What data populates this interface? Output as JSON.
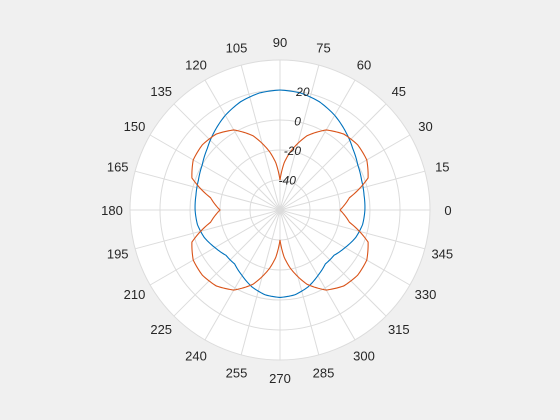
{
  "chart_data": {
    "type": "polar-line",
    "title": "",
    "theta_unit": "degrees",
    "theta_ticks": [
      0,
      15,
      30,
      45,
      60,
      75,
      90,
      105,
      120,
      135,
      150,
      165,
      180,
      195,
      210,
      225,
      240,
      255,
      270,
      285,
      300,
      315,
      330,
      345
    ],
    "theta_tick_labels": [
      "0",
      "15",
      "30",
      "45",
      "60",
      "75",
      "90",
      "105",
      "120",
      "135",
      "150",
      "165",
      "180",
      "195",
      "210",
      "225",
      "240",
      "255",
      "270",
      "285",
      "300",
      "315",
      "330",
      "345"
    ],
    "r_ticks": [
      -40,
      -20,
      0,
      20
    ],
    "r_tick_labels": [
      "-40",
      "-20",
      "0",
      "20"
    ],
    "r_range": [
      -60,
      40
    ],
    "r_label_angle_deg": 80,
    "grid": true,
    "background_color": "#ffffff",
    "grid_color": "#dcdcdc",
    "series": [
      {
        "color": "#0072bd",
        "theta": [
          0,
          10,
          20,
          30,
          40,
          50,
          60,
          70,
          80,
          90,
          100,
          110,
          120,
          130,
          140,
          150,
          160,
          170,
          180,
          190,
          200,
          210,
          220,
          230,
          240,
          250,
          260,
          270,
          280,
          290,
          300,
          310,
          320,
          330,
          340,
          350,
          360
        ],
        "r": [
          -3.4,
          -3.1,
          -2.1,
          -0.1,
          3.4,
          8.1,
          12.9,
          16.8,
          19.2,
          20.0,
          19.2,
          16.8,
          12.9,
          8.1,
          3.4,
          -0.1,
          -2.1,
          -3.1,
          -3.4,
          -4.1,
          -6.3,
          -9.9,
          -13.0,
          -13.0,
          -9.5,
          -5.4,
          -2.6,
          -1.7,
          -2.6,
          -5.4,
          -9.5,
          -13.0,
          -13.0,
          -9.9,
          -6.3,
          -4.1,
          -3.4
        ]
      },
      {
        "color": "#d95319",
        "theta": [
          0,
          10,
          20,
          30,
          40,
          50,
          60,
          70,
          80,
          85,
          90,
          95,
          100,
          110,
          120,
          130,
          140,
          150,
          160,
          170,
          180,
          190,
          200,
          210,
          220,
          230,
          240,
          250,
          260,
          265,
          270,
          275,
          280,
          290,
          300,
          310,
          320,
          330,
          340,
          350,
          360
        ],
        "r": [
          -20.0,
          -13.0,
          2.5,
          6.8,
          7.6,
          6.1,
          1.6,
          -7.3,
          -20.7,
          -28.5,
          -40.0,
          -28.5,
          -20.7,
          -7.3,
          1.6,
          6.1,
          7.6,
          6.8,
          2.5,
          -13.0,
          -20.0,
          -13.0,
          2.5,
          6.8,
          7.6,
          6.1,
          1.6,
          -7.3,
          -20.7,
          -28.5,
          -40.0,
          -28.5,
          -20.7,
          -7.3,
          1.6,
          6.1,
          7.6,
          6.8,
          2.5,
          -13.0,
          -20.0
        ]
      }
    ]
  }
}
